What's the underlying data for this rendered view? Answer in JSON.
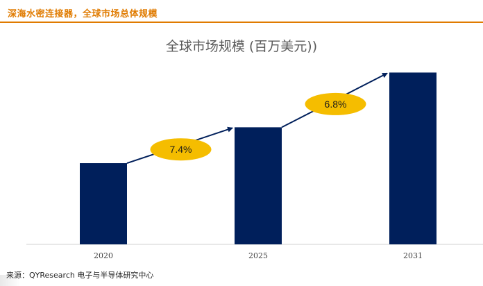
{
  "header": {
    "title": "深海水密连接器，全球市场总体规模",
    "accent_color": "#e07b00"
  },
  "source": "来源：QYResearch 电子与半导体研究中心",
  "chart_data": {
    "type": "bar",
    "title": "全球市场规模 (百万美元))",
    "categories": [
      "2020",
      "2025",
      "2031"
    ],
    "values": [
      43,
      62,
      91
    ],
    "ylim": [
      0,
      100
    ],
    "xlabel": "",
    "ylabel": "",
    "grid": false,
    "legend": "none",
    "bar_color": "#001f5b",
    "growth_labels": [
      {
        "text": "7.4%",
        "from": "2020",
        "to": "2025"
      },
      {
        "text": "6.8%",
        "from": "2025",
        "to": "2031"
      }
    ],
    "growth_label_color": "#f5bd00"
  }
}
